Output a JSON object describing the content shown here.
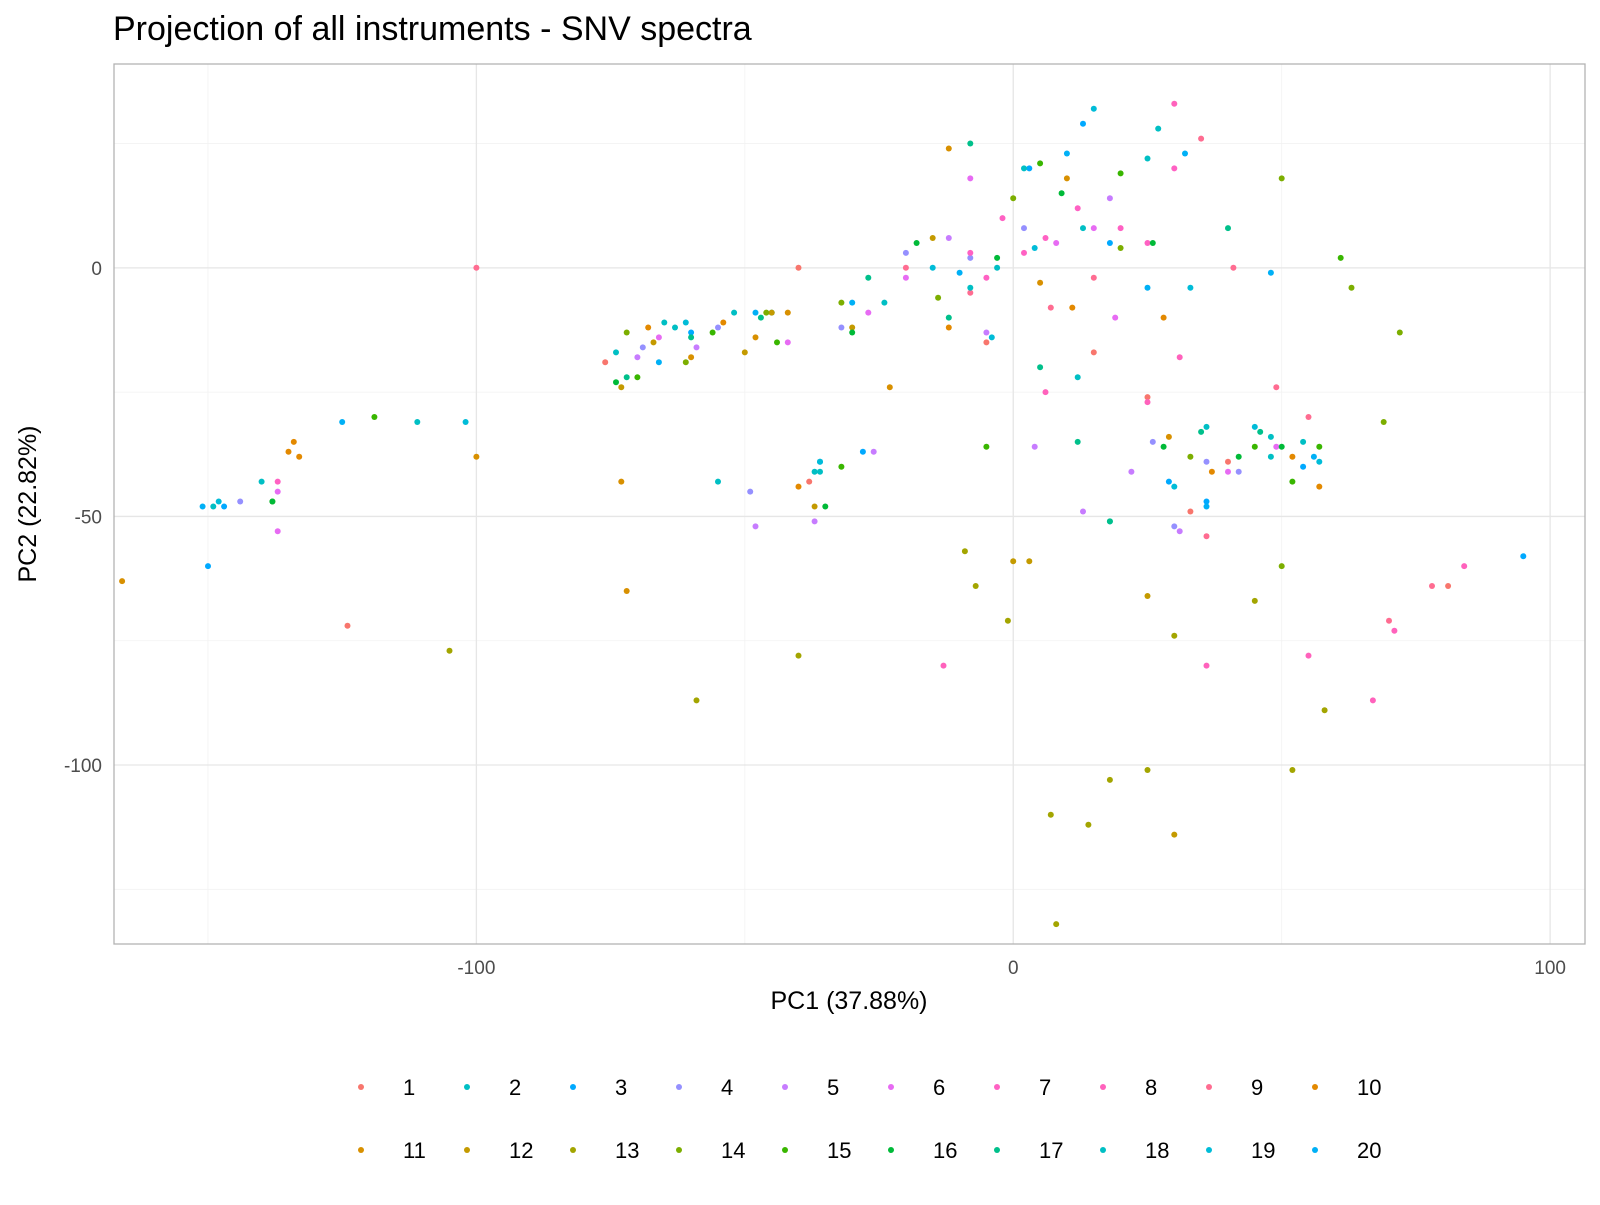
{
  "chart_data": {
    "type": "scatter",
    "title": "Projection of all instruments - SNV spectra",
    "xlabel": "PC1 (37.88%)",
    "ylabel": "PC2 (22.82%)",
    "xlim": [
      -167.5,
      106.5
    ],
    "ylim": [
      -136,
      41
    ],
    "x_ticks": [
      -100,
      0,
      100
    ],
    "y_ticks": [
      0,
      -50,
      -100
    ],
    "grid": true,
    "legend_position": "bottom",
    "colors": [
      "#F8766D",
      "#00BFC4",
      "#00A9FF",
      "#9590FF",
      "#C77CFF",
      "#E76BF3",
      "#FF61C3",
      "#FF62BC",
      "#FF6C91",
      "#E38900",
      "#D89000",
      "#C49A00",
      "#A3A500",
      "#7CAE00",
      "#39B600",
      "#00BA38",
      "#00C08B",
      "#00BFC4",
      "#00BCD8",
      "#00B0F6"
    ],
    "series": [
      {
        "name": "1",
        "points": [
          [
            -76,
            -19
          ],
          [
            -38,
            -43
          ],
          [
            -5,
            -15
          ],
          [
            15,
            -17
          ],
          [
            25,
            -26
          ],
          [
            33,
            -49
          ],
          [
            40,
            -39
          ],
          [
            -124,
            -72
          ],
          [
            81,
            -64
          ],
          [
            -40,
            0
          ]
        ]
      },
      {
        "name": "2",
        "points": [
          [
            -140,
            -43
          ],
          [
            -111,
            -31
          ],
          [
            -55,
            -43
          ],
          [
            -36,
            -41
          ],
          [
            -63,
            -12
          ],
          [
            -3,
            0
          ],
          [
            13,
            8
          ],
          [
            -45,
            -9
          ],
          [
            18,
            -51
          ],
          [
            48,
            -34
          ],
          [
            -74,
            -17
          ],
          [
            25,
            22
          ]
        ]
      },
      {
        "name": "3",
        "points": [
          [
            -147,
            -48
          ],
          [
            -150,
            -60
          ],
          [
            -36,
            -39
          ],
          [
            -28,
            -37
          ],
          [
            3,
            20
          ],
          [
            13,
            29
          ],
          [
            18,
            5
          ],
          [
            29,
            -43
          ],
          [
            36,
            -47
          ],
          [
            -60,
            -13
          ],
          [
            95,
            -58
          ],
          [
            54,
            -40
          ]
        ]
      },
      {
        "name": "4",
        "points": [
          [
            -69,
            -16
          ],
          [
            -49,
            -45
          ],
          [
            -32,
            -12
          ],
          [
            -20,
            3
          ],
          [
            -8,
            2
          ],
          [
            2,
            8
          ],
          [
            26,
            -35
          ],
          [
            30,
            -52
          ],
          [
            36,
            -39
          ],
          [
            42,
            -41
          ],
          [
            -144,
            -47
          ],
          [
            -55,
            -12
          ]
        ]
      },
      {
        "name": "5",
        "points": [
          [
            -70,
            -18
          ],
          [
            -48,
            -52
          ],
          [
            -26,
            -37
          ],
          [
            -5,
            -13
          ],
          [
            4,
            -36
          ],
          [
            13,
            -49
          ],
          [
            22,
            -41
          ],
          [
            31,
            -53
          ],
          [
            -37,
            -51
          ],
          [
            -12,
            6
          ],
          [
            18,
            14
          ],
          [
            -59,
            -16
          ]
        ]
      },
      {
        "name": "6",
        "points": [
          [
            -137,
            -53
          ],
          [
            -66,
            -14
          ],
          [
            -42,
            -15
          ],
          [
            -20,
            -2
          ],
          [
            -8,
            18
          ],
          [
            8,
            5
          ],
          [
            19,
            -10
          ],
          [
            40,
            -41
          ],
          [
            49,
            -36
          ],
          [
            -137,
            -45
          ],
          [
            -27,
            -9
          ],
          [
            15,
            8
          ]
        ]
      },
      {
        "name": "7",
        "points": [
          [
            -137,
            -43
          ],
          [
            -8,
            3
          ],
          [
            -2,
            10
          ],
          [
            6,
            6
          ],
          [
            12,
            12
          ],
          [
            20,
            8
          ],
          [
            -5,
            -2
          ],
          [
            30,
            20
          ],
          [
            2,
            3
          ],
          [
            25,
            5
          ]
        ]
      },
      {
        "name": "8",
        "points": [
          [
            -13,
            -80
          ],
          [
            6,
            -25
          ],
          [
            25,
            -27
          ],
          [
            31,
            -18
          ],
          [
            36,
            -80
          ],
          [
            55,
            -78
          ],
          [
            67,
            -87
          ],
          [
            71,
            -73
          ],
          [
            84,
            -60
          ],
          [
            30,
            33
          ]
        ]
      },
      {
        "name": "9",
        "points": [
          [
            -100,
            0
          ],
          [
            -20,
            0
          ],
          [
            -8,
            -5
          ],
          [
            7,
            -8
          ],
          [
            15,
            -2
          ],
          [
            36,
            -54
          ],
          [
            49,
            -24
          ],
          [
            55,
            -30
          ],
          [
            70,
            -71
          ],
          [
            78,
            -64
          ],
          [
            41,
            0
          ],
          [
            35,
            26
          ]
        ]
      },
      {
        "name": "10",
        "points": [
          [
            -134,
            -35
          ],
          [
            -133,
            -38
          ],
          [
            -135,
            -37
          ],
          [
            -54,
            -11
          ],
          [
            -40,
            -44
          ],
          [
            -12,
            -12
          ],
          [
            11,
            -8
          ],
          [
            28,
            -10
          ],
          [
            37,
            -41
          ],
          [
            52,
            -38
          ],
          [
            57,
            -44
          ],
          [
            -68,
            -12
          ]
        ]
      },
      {
        "name": "11",
        "points": [
          [
            -166,
            -63
          ],
          [
            -100,
            -38
          ],
          [
            -73,
            -43
          ],
          [
            -72,
            -65
          ],
          [
            -60,
            -18
          ],
          [
            -42,
            -9
          ],
          [
            -23,
            -24
          ],
          [
            -12,
            24
          ],
          [
            5,
            -3
          ],
          [
            10,
            18
          ],
          [
            29,
            -34
          ],
          [
            -48,
            -14
          ]
        ]
      },
      {
        "name": "12",
        "points": [
          [
            -73,
            -24
          ],
          [
            -50,
            -17
          ],
          [
            -45,
            -9
          ],
          [
            -30,
            -12
          ],
          [
            -15,
            6
          ],
          [
            0,
            -59
          ],
          [
            3,
            -59
          ],
          [
            25,
            -66
          ],
          [
            30,
            -114
          ],
          [
            -37,
            -48
          ],
          [
            -67,
            -15
          ]
        ]
      },
      {
        "name": "13",
        "points": [
          [
            -105,
            -77
          ],
          [
            -59,
            -87
          ],
          [
            -40,
            -78
          ],
          [
            -7,
            -64
          ],
          [
            -1,
            -71
          ],
          [
            7,
            -110
          ],
          [
            8,
            -132
          ],
          [
            14,
            -112
          ],
          [
            18,
            -103
          ],
          [
            25,
            -101
          ],
          [
            45,
            -67
          ],
          [
            52,
            -101
          ],
          [
            58,
            -89
          ],
          [
            30,
            -74
          ],
          [
            -9,
            -57
          ]
        ]
      },
      {
        "name": "14",
        "points": [
          [
            -138,
            -47
          ],
          [
            -72,
            -13
          ],
          [
            -61,
            -19
          ],
          [
            -46,
            -9
          ],
          [
            -32,
            -7
          ],
          [
            -14,
            -6
          ],
          [
            0,
            14
          ],
          [
            20,
            4
          ],
          [
            33,
            -38
          ],
          [
            50,
            18
          ],
          [
            63,
            -4
          ],
          [
            72,
            -13
          ],
          [
            69,
            -31
          ],
          [
            50,
            -60
          ]
        ]
      },
      {
        "name": "15",
        "points": [
          [
            -119,
            -30
          ],
          [
            -70,
            -22
          ],
          [
            -44,
            -15
          ],
          [
            -32,
            -40
          ],
          [
            -5,
            -36
          ],
          [
            5,
            21
          ],
          [
            20,
            19
          ],
          [
            45,
            -36
          ],
          [
            52,
            -43
          ],
          [
            57,
            -36
          ],
          [
            -56,
            -13
          ],
          [
            61,
            2
          ]
        ]
      },
      {
        "name": "16",
        "points": [
          [
            -138,
            -47
          ],
          [
            -74,
            -23
          ],
          [
            -35,
            -48
          ],
          [
            -30,
            -13
          ],
          [
            -18,
            5
          ],
          [
            -3,
            2
          ],
          [
            9,
            15
          ],
          [
            28,
            -36
          ],
          [
            42,
            -38
          ],
          [
            50,
            -36
          ],
          [
            26,
            5
          ]
        ]
      },
      {
        "name": "17",
        "points": [
          [
            -72,
            -22
          ],
          [
            -60,
            -14
          ],
          [
            -47,
            -10
          ],
          [
            -27,
            -2
          ],
          [
            -12,
            -10
          ],
          [
            5,
            -20
          ],
          [
            12,
            -35
          ],
          [
            18,
            -51
          ],
          [
            35,
            -33
          ],
          [
            46,
            -33
          ],
          [
            -8,
            25
          ],
          [
            40,
            8
          ]
        ]
      },
      {
        "name": "18",
        "points": [
          [
            -149,
            -48
          ],
          [
            -65,
            -11
          ],
          [
            -37,
            -41
          ],
          [
            -24,
            -7
          ],
          [
            -8,
            -4
          ],
          [
            2,
            20
          ],
          [
            12,
            -22
          ],
          [
            27,
            28
          ],
          [
            36,
            -32
          ],
          [
            48,
            -38
          ],
          [
            54,
            -35
          ],
          [
            -52,
            -9
          ]
        ]
      },
      {
        "name": "19",
        "points": [
          [
            -148,
            -47
          ],
          [
            -102,
            -31
          ],
          [
            -61,
            -11
          ],
          [
            -36,
            -39
          ],
          [
            -15,
            0
          ],
          [
            4,
            4
          ],
          [
            15,
            32
          ],
          [
            30,
            -44
          ],
          [
            45,
            -32
          ],
          [
            57,
            -39
          ],
          [
            33,
            -4
          ],
          [
            -4,
            -14
          ]
        ]
      },
      {
        "name": "20",
        "points": [
          [
            -151,
            -48
          ],
          [
            -125,
            -31
          ],
          [
            -66,
            -19
          ],
          [
            -48,
            -9
          ],
          [
            -30,
            -7
          ],
          [
            -10,
            -1
          ],
          [
            10,
            23
          ],
          [
            25,
            -4
          ],
          [
            36,
            -48
          ],
          [
            56,
            -38
          ],
          [
            48,
            -1
          ],
          [
            32,
            23
          ]
        ]
      }
    ]
  }
}
